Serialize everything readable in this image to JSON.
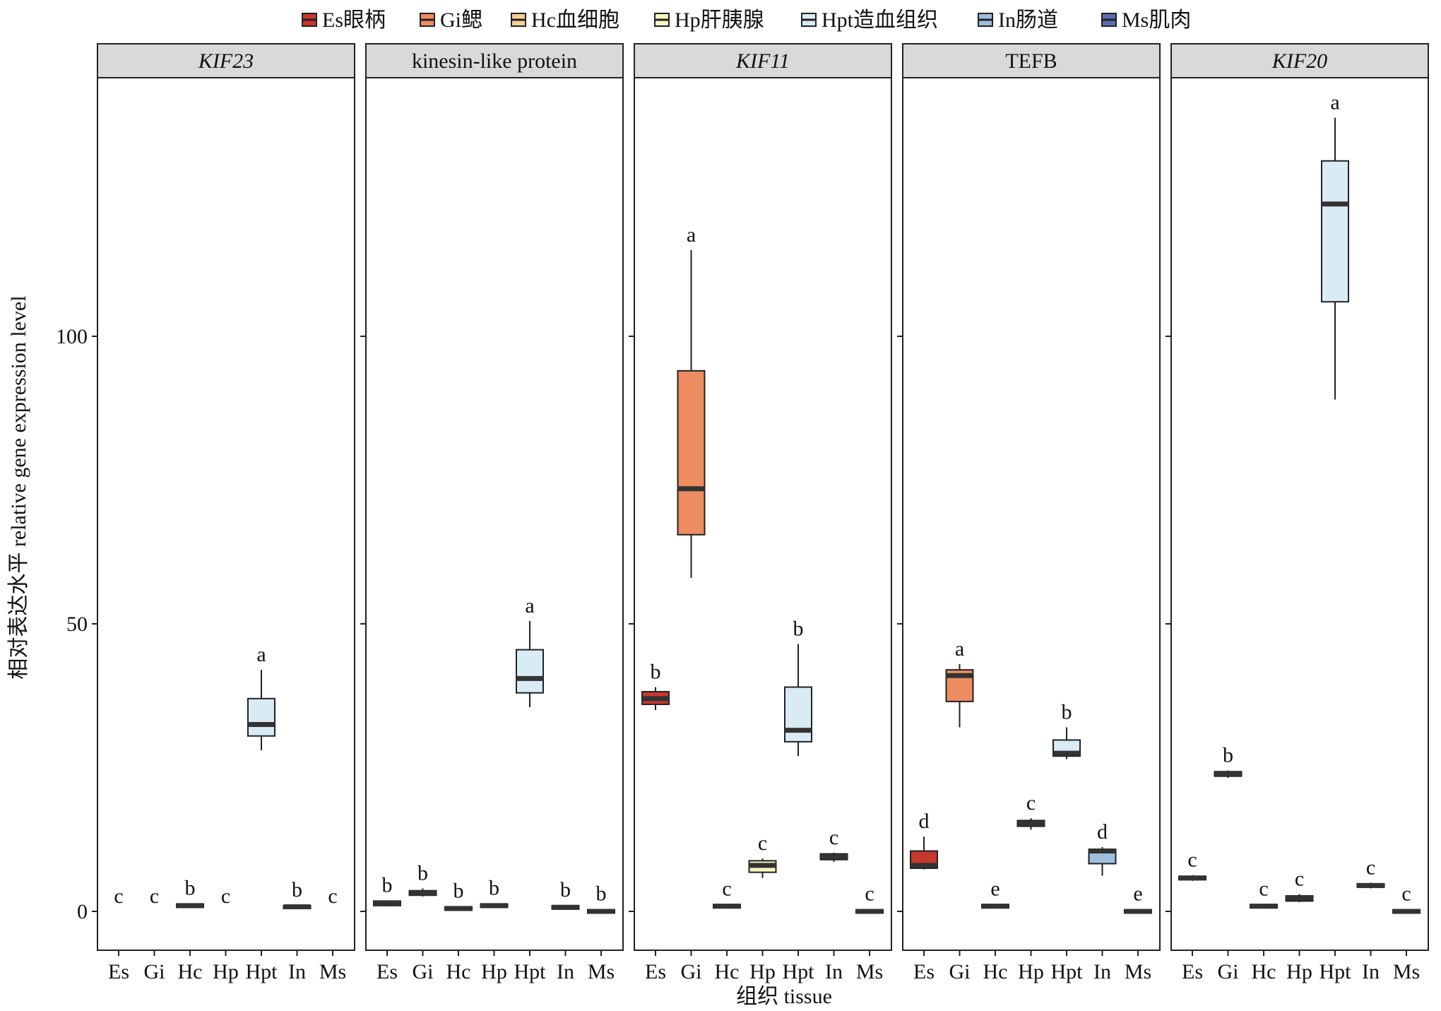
{
  "chart_data": {
    "type": "boxplot",
    "xlabel": "组织 tissue",
    "ylabel": "相对表达水平 relative gene expression level",
    "yticks": [
      0,
      50,
      100
    ],
    "ylim": [
      -7,
      145
    ],
    "categories": [
      "Es",
      "Gi",
      "Hc",
      "Hp",
      "Hpt",
      "In",
      "Ms"
    ],
    "legend": {
      "position": "top",
      "entries": [
        {
          "label": "Es眼柄",
          "color": "#c8372d"
        },
        {
          "label": "Gi鳃",
          "color": "#ec8c60"
        },
        {
          "label": "Hc血细胞",
          "color": "#f6cf98"
        },
        {
          "label": "Hp肝胰腺",
          "color": "#fbf6c0"
        },
        {
          "label": "Hpt造血组织",
          "color": "#d9ebf5"
        },
        {
          "label": "In肠道",
          "color": "#9dbede"
        },
        {
          "label": "Ms肌肉",
          "color": "#5b6fae"
        }
      ]
    },
    "panels": [
      {
        "title": "KIF23",
        "italic": true,
        "boxes": [
          {
            "category": "Es",
            "q1": 0,
            "median": 0,
            "q3": 0,
            "min": 0,
            "max": 0,
            "letter": "c",
            "show": false
          },
          {
            "category": "Gi",
            "q1": 0,
            "median": 0,
            "q3": 0,
            "min": 0,
            "max": 0,
            "letter": "c",
            "show": false
          },
          {
            "category": "Hc",
            "q1": 0.7,
            "median": 1.0,
            "q3": 1.3,
            "min": 0.6,
            "max": 1.4,
            "letter": "b",
            "show": true
          },
          {
            "category": "Hp",
            "q1": 0,
            "median": 0,
            "q3": 0,
            "min": 0,
            "max": 0,
            "letter": "c",
            "show": false
          },
          {
            "category": "Hpt",
            "q1": 30.5,
            "median": 32.5,
            "q3": 37.0,
            "min": 28.0,
            "max": 42.0,
            "letter": "a",
            "show": true
          },
          {
            "category": "In",
            "q1": 0.5,
            "median": 0.8,
            "q3": 1.0,
            "min": 0.4,
            "max": 1.1,
            "letter": "b",
            "show": true
          },
          {
            "category": "Ms",
            "q1": 0,
            "median": 0,
            "q3": 0,
            "min": 0,
            "max": 0,
            "letter": "c",
            "show": false
          }
        ]
      },
      {
        "title": "kinesin-like protein",
        "italic": false,
        "boxes": [
          {
            "category": "Es",
            "q1": 1.0,
            "median": 1.4,
            "q3": 1.8,
            "min": 0.9,
            "max": 1.9,
            "letter": "b",
            "show": true
          },
          {
            "category": "Gi",
            "q1": 2.8,
            "median": 3.2,
            "q3": 3.6,
            "min": 2.6,
            "max": 4.0,
            "letter": "b",
            "show": true
          },
          {
            "category": "Hc",
            "q1": 0.2,
            "median": 0.5,
            "q3": 0.8,
            "min": 0.1,
            "max": 0.9,
            "letter": "b",
            "show": true
          },
          {
            "category": "Hp",
            "q1": 0.7,
            "median": 1.0,
            "q3": 1.3,
            "min": 0.6,
            "max": 1.4,
            "letter": "b",
            "show": true
          },
          {
            "category": "Hpt",
            "q1": 38.0,
            "median": 40.5,
            "q3": 45.5,
            "min": 35.5,
            "max": 50.5,
            "letter": "a",
            "show": true
          },
          {
            "category": "In",
            "q1": 0.4,
            "median": 0.7,
            "q3": 1.0,
            "min": 0.3,
            "max": 1.1,
            "letter": "b",
            "show": true
          },
          {
            "category": "Ms",
            "q1": -0.3,
            "median": 0,
            "q3": 0.3,
            "min": -0.4,
            "max": 0.4,
            "letter": "b",
            "show": true
          }
        ]
      },
      {
        "title": "KIF11",
        "italic": true,
        "boxes": [
          {
            "category": "Es",
            "q1": 36.0,
            "median": 37.0,
            "q3": 38.2,
            "min": 35.0,
            "max": 39.0,
            "letter": "b",
            "show": true
          },
          {
            "category": "Gi",
            "q1": 65.5,
            "median": 73.5,
            "q3": 94.0,
            "min": 58.0,
            "max": 115.0,
            "letter": "a",
            "show": true
          },
          {
            "category": "Hc",
            "q1": 0.6,
            "median": 0.9,
            "q3": 1.2,
            "min": 0.5,
            "max": 1.3,
            "letter": "c",
            "show": true
          },
          {
            "category": "Hp",
            "q1": 6.8,
            "median": 8.0,
            "q3": 8.8,
            "min": 5.8,
            "max": 9.2,
            "letter": "c",
            "show": true
          },
          {
            "category": "Hpt",
            "q1": 29.5,
            "median": 31.5,
            "q3": 39.0,
            "min": 27.0,
            "max": 46.5,
            "letter": "b",
            "show": true
          },
          {
            "category": "In",
            "q1": 9.0,
            "median": 9.5,
            "q3": 10.0,
            "min": 8.6,
            "max": 10.2,
            "letter": "c",
            "show": true
          },
          {
            "category": "Ms",
            "q1": -0.3,
            "median": 0,
            "q3": 0.3,
            "min": -0.4,
            "max": 0.4,
            "letter": "c",
            "show": true
          }
        ]
      },
      {
        "title": "TEFB",
        "italic": false,
        "boxes": [
          {
            "category": "Es",
            "q1": 7.5,
            "median": 8.0,
            "q3": 10.5,
            "min": 7.3,
            "max": 13.0,
            "letter": "d",
            "show": true
          },
          {
            "category": "Gi",
            "q1": 36.5,
            "median": 41.0,
            "q3": 42.0,
            "min": 32.0,
            "max": 43.0,
            "letter": "a",
            "show": true
          },
          {
            "category": "Hc",
            "q1": 0.6,
            "median": 0.9,
            "q3": 1.2,
            "min": 0.5,
            "max": 1.3,
            "letter": "e",
            "show": true
          },
          {
            "category": "Hp",
            "q1": 14.8,
            "median": 15.3,
            "q3": 15.8,
            "min": 14.2,
            "max": 16.2,
            "letter": "c",
            "show": true
          },
          {
            "category": "Hpt",
            "q1": 27.0,
            "median": 27.5,
            "q3": 29.8,
            "min": 26.5,
            "max": 32.0,
            "letter": "b",
            "show": true
          },
          {
            "category": "In",
            "q1": 8.3,
            "median": 10.5,
            "q3": 10.8,
            "min": 6.2,
            "max": 11.2,
            "letter": "d",
            "show": true
          },
          {
            "category": "Ms",
            "q1": -0.3,
            "median": 0,
            "q3": 0.3,
            "min": -0.4,
            "max": 0.4,
            "letter": "e",
            "show": true
          }
        ]
      },
      {
        "title": "KIF20",
        "italic": true,
        "boxes": [
          {
            "category": "Es",
            "q1": 5.5,
            "median": 5.8,
            "q3": 6.1,
            "min": 5.3,
            "max": 6.3,
            "letter": "c",
            "show": true
          },
          {
            "category": "Gi",
            "q1": 23.5,
            "median": 23.9,
            "q3": 24.3,
            "min": 23.2,
            "max": 24.5,
            "letter": "b",
            "show": true
          },
          {
            "category": "Hc",
            "q1": 0.6,
            "median": 0.9,
            "q3": 1.2,
            "min": 0.5,
            "max": 1.3,
            "letter": "c",
            "show": true
          },
          {
            "category": "Hp",
            "q1": 1.8,
            "median": 2.3,
            "q3": 2.7,
            "min": 1.6,
            "max": 3.0,
            "letter": "c",
            "show": true
          },
          {
            "category": "Hpt",
            "q1": 106.0,
            "median": 123.0,
            "q3": 130.5,
            "min": 89.0,
            "max": 138.0,
            "letter": "a",
            "show": true
          },
          {
            "category": "In",
            "q1": 4.2,
            "median": 4.5,
            "q3": 4.8,
            "min": 4.0,
            "max": 5.0,
            "letter": "c",
            "show": true
          },
          {
            "category": "Ms",
            "q1": -0.3,
            "median": 0,
            "q3": 0.3,
            "min": -0.4,
            "max": 0.4,
            "letter": "c",
            "show": true
          }
        ]
      }
    ]
  }
}
